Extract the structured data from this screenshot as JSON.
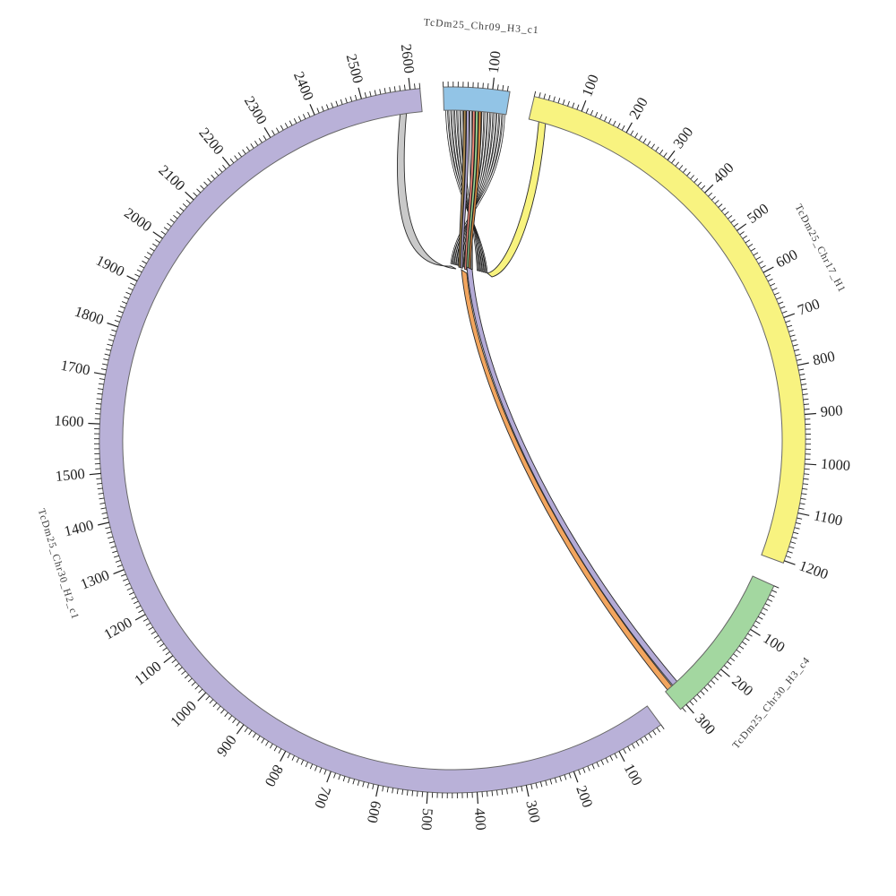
{
  "figure": {
    "background": "#ffffff",
    "description": "Circos-style synteny plot of four sequence segments connected by ribbon links"
  },
  "chart_data": {
    "type": "circos-chord",
    "direction": "clockwise",
    "grid": "off",
    "degrees_per_unit": 0.0805,
    "tick_minor_interval": 10,
    "tick_major_interval": 100,
    "segments": [
      {
        "name": "TcDm25_Chr09_H3_c1",
        "color": "#92c4e6",
        "length": 135,
        "start_angle": 358.5,
        "label_angle": 4.0,
        "major_tick_labels": [
          100
        ]
      },
      {
        "name": "TcDm25_Chr17_H1",
        "color": "#f8f380",
        "length": 1205,
        "start_angle": 13.4,
        "label_angle": 62.5,
        "major_tick_labels": [
          100,
          200,
          300,
          400,
          500,
          600,
          700,
          800,
          900,
          1000,
          1100,
          1200
        ]
      },
      {
        "name": "TcDm25_Chr30_H3_c4",
        "color": "#a3d7a0",
        "length": 315,
        "start_angle": 114.4,
        "label_angle": 129.5,
        "major_tick_labels": [
          100,
          200,
          300
        ]
      },
      {
        "name": "TcDm25_Chr30_H2_c1",
        "color": "#b9b1d8",
        "length": 2620,
        "start_angle": 143.8,
        "label_angle": 252.5,
        "major_tick_labels": [
          100,
          200,
          300,
          400,
          500,
          600,
          700,
          800,
          900,
          1000,
          1100,
          1200,
          1300,
          1400,
          1500,
          1600,
          1700,
          1800,
          1900,
          2000,
          2100,
          2200,
          2300,
          2400,
          2500,
          2600
        ]
      }
    ],
    "links": {
      "convergence_point": [
        521,
        303
      ],
      "bundle": {
        "source": "TcDm25_Chr09_H3_c1",
        "span": [
          6,
          130
        ],
        "colors": [
          "#ffffff",
          "#ffffff",
          "#ffffff",
          "#ffffff",
          "#ffffff",
          "#ffffff",
          "#ab8a52",
          "#b3aad6",
          "#ffffff",
          "#f0897a",
          "#98d492",
          "#d98a45",
          "#ffffff",
          "#ffffff",
          "#ffffff",
          "#ffffff",
          "#ffffff",
          "#ffffff",
          "#ffffff",
          "#ffffff"
        ]
      },
      "side_ribbons": [
        {
          "source": "TcDm25_Chr30_H2_c1",
          "position": 2572,
          "width": 14,
          "color": "#c9c9c9"
        },
        {
          "source": "TcDm25_Chr17_H1",
          "position": 22,
          "width": 15,
          "color": "#f8f37e"
        }
      ],
      "through_ribbons": [
        {
          "target": "TcDm25_Chr30_H3_c4",
          "position": 303,
          "color": "#f2a55e"
        },
        {
          "target": "TcDm25_Chr30_H3_c4",
          "position": 288,
          "color": "#b3aad6"
        }
      ]
    }
  }
}
